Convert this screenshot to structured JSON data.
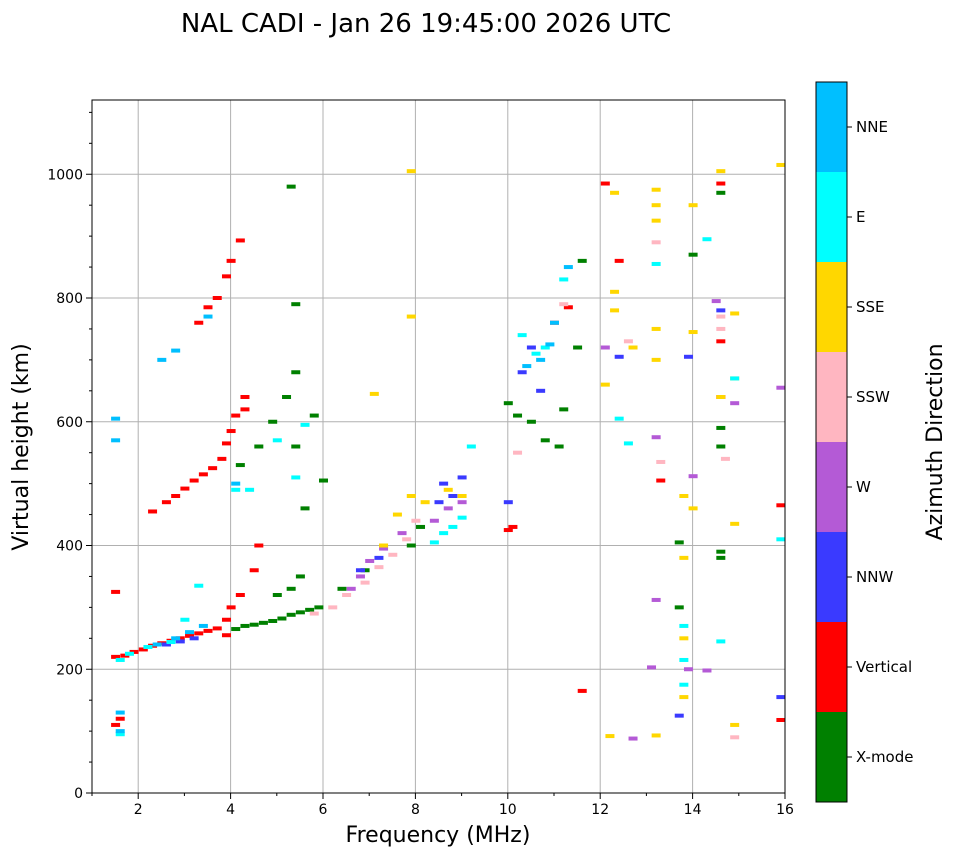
{
  "chart_data": {
    "type": "scatter",
    "title": "NAL CADI - Jan 26 19:45:00 2026 UTC",
    "xlabel": "Frequency (MHz)",
    "ylabel": "Virtual height (km)",
    "xlim": [
      1,
      16
    ],
    "ylim": [
      0,
      1120
    ],
    "xticks": [
      2,
      4,
      6,
      8,
      10,
      12,
      14,
      16
    ],
    "yticks": [
      0,
      200,
      400,
      600,
      800,
      1000
    ],
    "grid": true,
    "colorbar": {
      "title": "Azimuth Direction",
      "categories": [
        {
          "name": "X-mode",
          "color": "#008000"
        },
        {
          "name": "Vertical",
          "color": "#ff0000"
        },
        {
          "name": "NNW",
          "color": "#3a3aff"
        },
        {
          "name": "W",
          "color": "#b45ad6"
        },
        {
          "name": "SSW",
          "color": "#ffb6c1"
        },
        {
          "name": "SSE",
          "color": "#ffd700"
        },
        {
          "name": "E",
          "color": "#00ffff"
        },
        {
          "name": "NNE",
          "color": "#00bfff"
        }
      ]
    },
    "series": [
      {
        "name": "Vertical",
        "points": [
          [
            1.5,
            220
          ],
          [
            1.7,
            222
          ],
          [
            1.9,
            228
          ],
          [
            2.1,
            232
          ],
          [
            2.3,
            238
          ],
          [
            2.5,
            242
          ],
          [
            2.7,
            246
          ],
          [
            2.9,
            250
          ],
          [
            3.1,
            254
          ],
          [
            3.3,
            258
          ],
          [
            3.5,
            262
          ],
          [
            3.7,
            266
          ],
          [
            3.9,
            255
          ],
          [
            3.9,
            280
          ],
          [
            4.0,
            300
          ],
          [
            4.2,
            320
          ],
          [
            4.5,
            360
          ],
          [
            4.6,
            400
          ],
          [
            2.3,
            455
          ],
          [
            2.6,
            470
          ],
          [
            2.8,
            480
          ],
          [
            3.0,
            492
          ],
          [
            3.2,
            505
          ],
          [
            3.4,
            515
          ],
          [
            3.6,
            525
          ],
          [
            3.8,
            540
          ],
          [
            3.9,
            565
          ],
          [
            4.0,
            585
          ],
          [
            4.1,
            610
          ],
          [
            4.3,
            640
          ],
          [
            3.3,
            760
          ],
          [
            3.5,
            785
          ],
          [
            3.7,
            800
          ],
          [
            3.9,
            835
          ],
          [
            4.0,
            860
          ],
          [
            4.2,
            893
          ],
          [
            4.3,
            620
          ],
          [
            1.5,
            110
          ],
          [
            1.6,
            120
          ],
          [
            1.5,
            325
          ],
          [
            10.0,
            425
          ],
          [
            10.1,
            430
          ],
          [
            11.0,
            760
          ],
          [
            11.3,
            785
          ],
          [
            12.4,
            860
          ],
          [
            13.3,
            505
          ],
          [
            14.6,
            730
          ],
          [
            14.6,
            640
          ],
          [
            15.9,
            465
          ],
          [
            15.9,
            118
          ],
          [
            11.6,
            165
          ],
          [
            12.1,
            985
          ],
          [
            14.6,
            985
          ]
        ]
      },
      {
        "name": "X-mode",
        "points": [
          [
            4.1,
            265
          ],
          [
            4.3,
            270
          ],
          [
            4.5,
            272
          ],
          [
            4.7,
            275
          ],
          [
            4.9,
            278
          ],
          [
            5.1,
            282
          ],
          [
            5.3,
            288
          ],
          [
            5.5,
            292
          ],
          [
            5.7,
            296
          ],
          [
            5.9,
            300
          ],
          [
            4.2,
            530
          ],
          [
            4.6,
            560
          ],
          [
            4.9,
            600
          ],
          [
            5.2,
            640
          ],
          [
            5.4,
            680
          ],
          [
            5.3,
            330
          ],
          [
            5.5,
            350
          ],
          [
            5.0,
            320
          ],
          [
            5.6,
            460
          ],
          [
            6.0,
            505
          ],
          [
            5.4,
            560
          ],
          [
            5.8,
            610
          ],
          [
            6.4,
            330
          ],
          [
            6.9,
            360
          ],
          [
            7.9,
            400
          ],
          [
            8.1,
            430
          ],
          [
            10.0,
            630
          ],
          [
            10.2,
            610
          ],
          [
            10.5,
            600
          ],
          [
            10.8,
            570
          ],
          [
            11.1,
            560
          ],
          [
            11.2,
            620
          ],
          [
            11.5,
            720
          ],
          [
            11.6,
            860
          ],
          [
            13.7,
            405
          ],
          [
            13.7,
            300
          ],
          [
            14.6,
            390
          ],
          [
            14.6,
            380
          ],
          [
            14.6,
            590
          ],
          [
            14.6,
            560
          ],
          [
            14.6,
            970
          ],
          [
            14.0,
            870
          ],
          [
            5.3,
            980
          ],
          [
            5.4,
            790
          ]
        ]
      },
      {
        "name": "NNW",
        "points": [
          [
            2.6,
            240
          ],
          [
            2.9,
            245
          ],
          [
            3.2,
            250
          ],
          [
            6.8,
            360
          ],
          [
            7.2,
            380
          ],
          [
            8.5,
            470
          ],
          [
            8.6,
            500
          ],
          [
            8.8,
            480
          ],
          [
            9.0,
            510
          ],
          [
            10.3,
            680
          ],
          [
            10.5,
            720
          ],
          [
            10.7,
            650
          ],
          [
            12.4,
            705
          ],
          [
            13.7,
            125
          ],
          [
            13.9,
            705
          ],
          [
            14.6,
            780
          ],
          [
            15.9,
            155
          ],
          [
            10.0,
            470
          ]
        ]
      },
      {
        "name": "W",
        "points": [
          [
            6.6,
            330
          ],
          [
            6.8,
            350
          ],
          [
            7.0,
            375
          ],
          [
            7.3,
            395
          ],
          [
            7.7,
            420
          ],
          [
            8.4,
            440
          ],
          [
            8.7,
            460
          ],
          [
            9.0,
            470
          ],
          [
            12.7,
            88
          ],
          [
            13.2,
            312
          ],
          [
            13.1,
            203
          ],
          [
            13.9,
            200
          ],
          [
            14.3,
            198
          ],
          [
            13.2,
            575
          ],
          [
            14.0,
            512
          ],
          [
            14.9,
            630
          ],
          [
            14.5,
            795
          ],
          [
            15.9,
            655
          ],
          [
            12.1,
            720
          ]
        ]
      },
      {
        "name": "SSW",
        "points": [
          [
            5.8,
            290
          ],
          [
            6.2,
            300
          ],
          [
            6.5,
            320
          ],
          [
            6.9,
            340
          ],
          [
            7.2,
            365
          ],
          [
            7.5,
            385
          ],
          [
            7.8,
            410
          ],
          [
            8.0,
            440
          ],
          [
            12.6,
            730
          ],
          [
            13.2,
            890
          ],
          [
            14.6,
            750
          ],
          [
            14.7,
            540
          ],
          [
            14.9,
            90
          ],
          [
            14.6,
            770
          ],
          [
            13.3,
            535
          ],
          [
            10.2,
            550
          ],
          [
            11.2,
            790
          ]
        ]
      },
      {
        "name": "SSE",
        "points": [
          [
            7.3,
            400
          ],
          [
            7.6,
            450
          ],
          [
            7.9,
            480
          ],
          [
            8.2,
            470
          ],
          [
            8.7,
            490
          ],
          [
            9.0,
            480
          ],
          [
            7.9,
            770
          ],
          [
            7.9,
            1005
          ],
          [
            7.1,
            645
          ],
          [
            12.1,
            660
          ],
          [
            12.2,
            92
          ],
          [
            12.3,
            780
          ],
          [
            12.3,
            970
          ],
          [
            12.7,
            720
          ],
          [
            13.2,
            975
          ],
          [
            13.2,
            950
          ],
          [
            13.2,
            925
          ],
          [
            13.2,
            750
          ],
          [
            13.2,
            700
          ],
          [
            13.2,
            93
          ],
          [
            13.8,
            380
          ],
          [
            13.8,
            480
          ],
          [
            13.8,
            250
          ],
          [
            13.8,
            155
          ],
          [
            14.0,
            460
          ],
          [
            14.0,
            745
          ],
          [
            14.0,
            950
          ],
          [
            14.6,
            1005
          ],
          [
            14.6,
            640
          ],
          [
            14.9,
            110
          ],
          [
            14.9,
            435
          ],
          [
            14.9,
            670
          ],
          [
            14.9,
            775
          ],
          [
            15.9,
            1015
          ],
          [
            12.3,
            810
          ]
        ]
      },
      {
        "name": "E",
        "points": [
          [
            1.6,
            215
          ],
          [
            1.8,
            225
          ],
          [
            2.2,
            236
          ],
          [
            2.7,
            244
          ],
          [
            3.0,
            280
          ],
          [
            3.3,
            335
          ],
          [
            4.1,
            490
          ],
          [
            4.4,
            490
          ],
          [
            5.4,
            510
          ],
          [
            5.0,
            570
          ],
          [
            5.6,
            595
          ],
          [
            8.4,
            405
          ],
          [
            8.6,
            420
          ],
          [
            8.8,
            430
          ],
          [
            9.0,
            445
          ],
          [
            9.2,
            560
          ],
          [
            10.3,
            740
          ],
          [
            10.6,
            710
          ],
          [
            10.8,
            720
          ],
          [
            11.2,
            830
          ],
          [
            12.4,
            605
          ],
          [
            12.6,
            565
          ],
          [
            13.2,
            855
          ],
          [
            13.8,
            175
          ],
          [
            13.8,
            270
          ],
          [
            13.8,
            215
          ],
          [
            14.3,
            895
          ],
          [
            14.6,
            245
          ],
          [
            15.9,
            410
          ],
          [
            14.9,
            670
          ],
          [
            1.6,
            95
          ]
        ]
      },
      {
        "name": "NNE",
        "points": [
          [
            1.5,
            605
          ],
          [
            1.5,
            570
          ],
          [
            2.5,
            700
          ],
          [
            2.8,
            715
          ],
          [
            3.5,
            770
          ],
          [
            2.4,
            240
          ],
          [
            2.8,
            250
          ],
          [
            3.1,
            260
          ],
          [
            3.4,
            270
          ],
          [
            4.1,
            500
          ],
          [
            10.4,
            690
          ],
          [
            10.7,
            700
          ],
          [
            10.9,
            725
          ],
          [
            11.0,
            760
          ],
          [
            11.3,
            850
          ],
          [
            1.6,
            100
          ],
          [
            1.6,
            130
          ]
        ]
      }
    ]
  }
}
